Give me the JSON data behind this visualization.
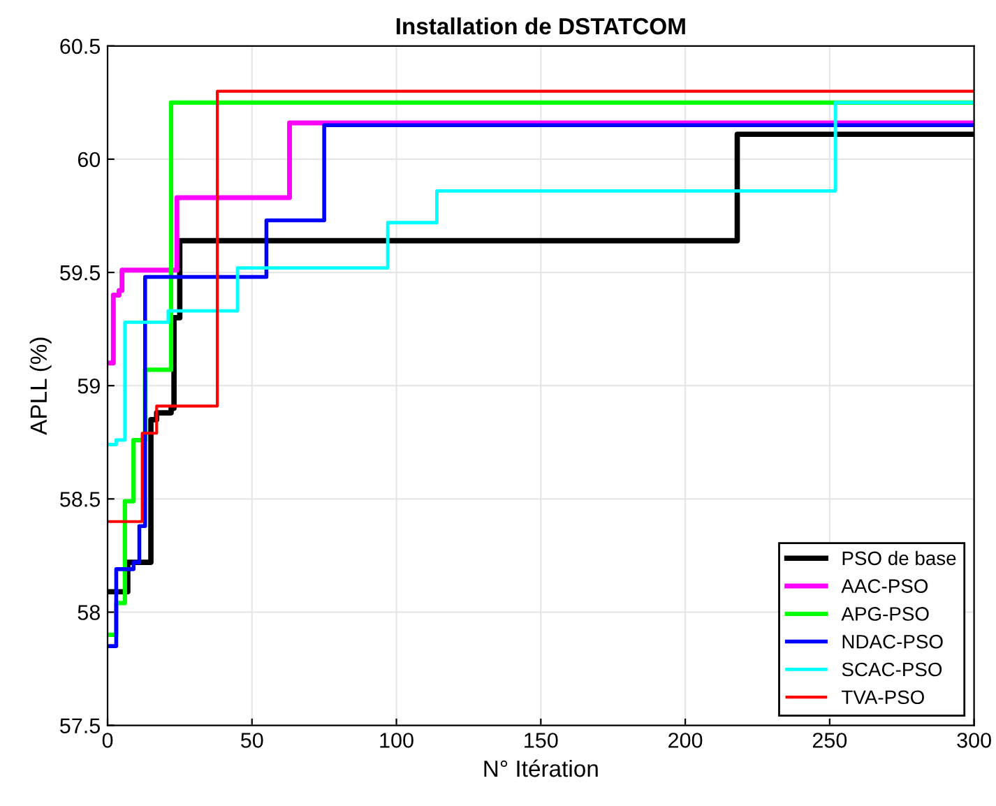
{
  "chart_data": {
    "type": "step",
    "title": "Installation de DSTATCOM",
    "xlabel": "N° Itération",
    "ylabel": "APLL (%)",
    "xlim": [
      0,
      300
    ],
    "ylim": [
      57.5,
      60.5
    ],
    "xticks": [
      0,
      50,
      100,
      150,
      200,
      250,
      300
    ],
    "yticks": [
      57.5,
      58,
      58.5,
      59,
      59.5,
      60,
      60.5
    ],
    "grid": true,
    "legend": "bottom right",
    "line_style": "solid",
    "marker": "none",
    "series": [
      {
        "name": "PSO de base",
        "color": "#000000",
        "x": [
          0,
          7,
          15,
          17,
          22,
          23,
          25,
          218,
          300
        ],
        "values": [
          58.09,
          58.22,
          58.85,
          58.88,
          58.9,
          59.3,
          59.64,
          60.11,
          60.11
        ]
      },
      {
        "name": "AAC-PSO",
        "color": "#ff00ff",
        "x": [
          0,
          2,
          4,
          5,
          24,
          63,
          300
        ],
        "values": [
          59.1,
          59.4,
          59.42,
          59.51,
          59.83,
          60.16,
          60.16
        ]
      },
      {
        "name": "APG-PSO",
        "color": "#00ff00",
        "x": [
          0,
          3,
          6,
          9,
          13,
          22,
          300
        ],
        "values": [
          57.9,
          58.04,
          58.49,
          58.76,
          59.07,
          60.25,
          60.25
        ]
      },
      {
        "name": "NDAC-PSO",
        "color": "#0000ff",
        "x": [
          0,
          3,
          9,
          11,
          13,
          55,
          75,
          300
        ],
        "values": [
          57.85,
          58.19,
          58.22,
          58.38,
          59.48,
          59.73,
          60.15,
          60.15
        ]
      },
      {
        "name": "SCAC-PSO",
        "color": "#00ffff",
        "x": [
          0,
          3,
          6,
          21,
          45,
          97,
          114,
          252,
          300
        ],
        "values": [
          58.74,
          58.76,
          59.28,
          59.33,
          59.52,
          59.72,
          59.86,
          60.25,
          60.25
        ]
      },
      {
        "name": "TVA-PSO",
        "color": "#ff0000",
        "x": [
          0,
          12,
          17,
          38,
          300
        ],
        "values": [
          58.4,
          58.79,
          58.91,
          60.3,
          60.3
        ]
      }
    ]
  }
}
